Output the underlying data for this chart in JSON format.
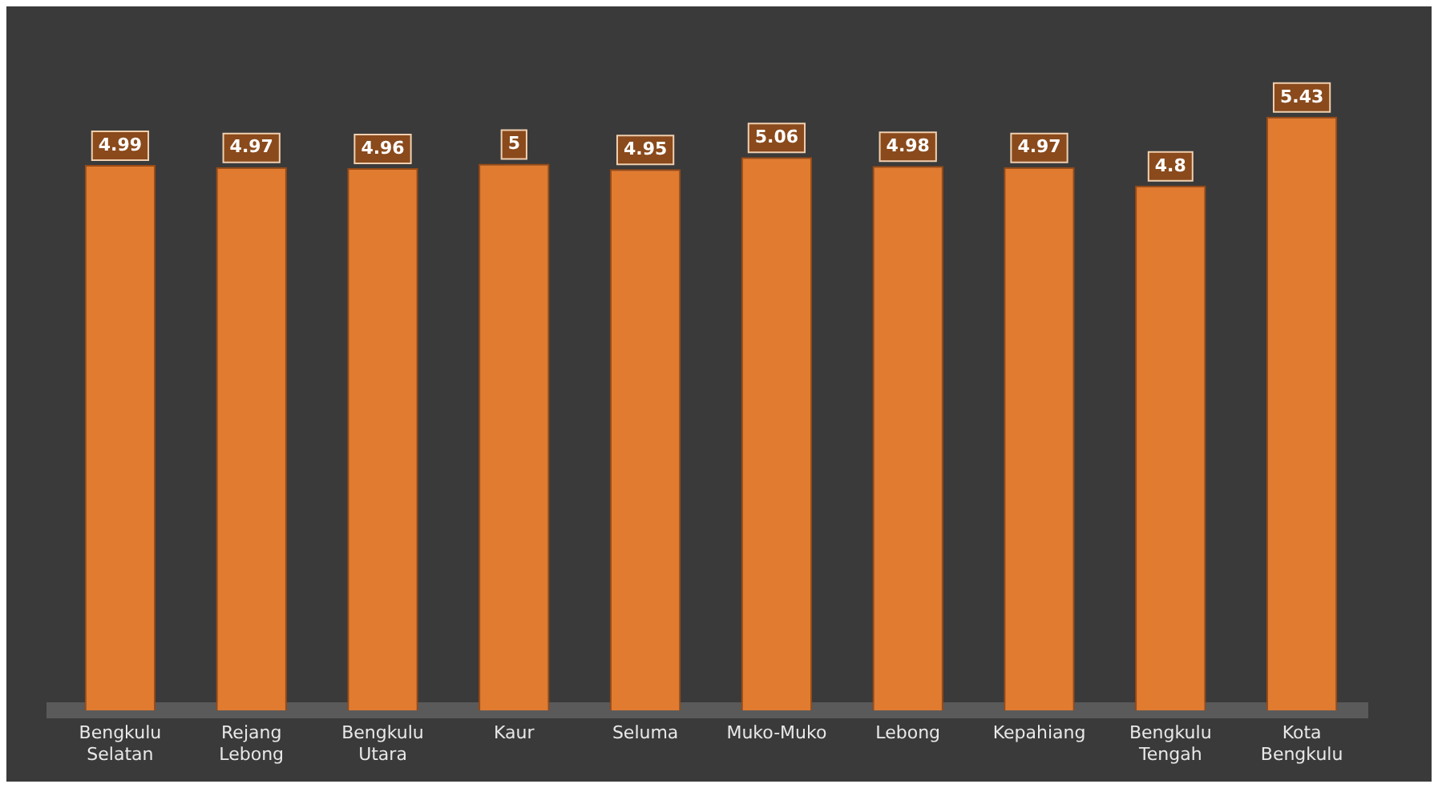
{
  "chart_data": {
    "type": "bar",
    "categories": [
      "Bengkulu Selatan",
      "Rejang Lebong",
      "Bengkulu Utara",
      "Kaur",
      "Seluma",
      "Muko-Muko",
      "Lebong",
      "Kepahiang",
      "Bengkulu Tengah",
      "Kota Bengkulu"
    ],
    "values": [
      4.99,
      4.97,
      4.96,
      5,
      4.95,
      5.06,
      4.98,
      4.97,
      4.8,
      5.43
    ],
    "color": "#e07b30",
    "tick_labels": "x",
    "data_labels": true,
    "grid": false,
    "legend": false
  }
}
